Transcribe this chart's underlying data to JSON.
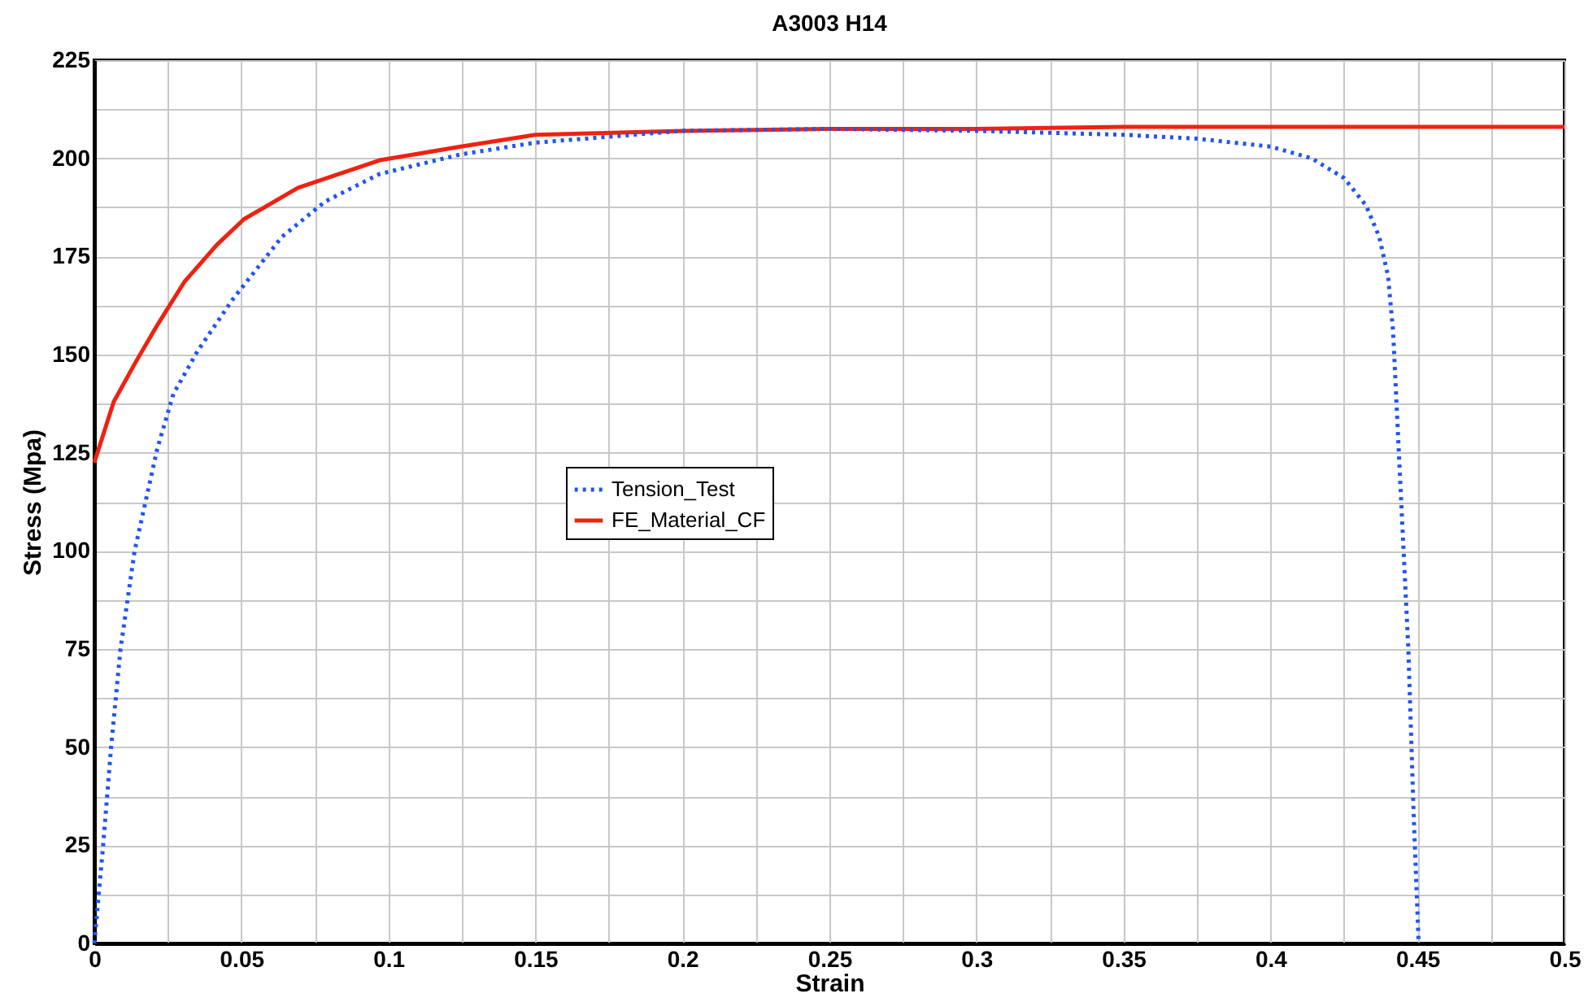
{
  "chart_data": {
    "type": "line",
    "title": "A3003 H14",
    "xlabel": "Strain",
    "ylabel": "Stress (Mpa)",
    "xlim": [
      0,
      0.5
    ],
    "ylim": [
      0,
      225
    ],
    "xticks": [
      0,
      {
        "value": 0.025,
        "label": null
      },
      0.05,
      {
        "value": 0.075,
        "label": null
      },
      0.1,
      {
        "value": 0.125,
        "label": null
      },
      0.15,
      {
        "value": 0.175,
        "label": null
      },
      0.2,
      {
        "value": 0.225,
        "label": null
      },
      0.25,
      {
        "value": 0.275,
        "label": null
      },
      0.3,
      {
        "value": 0.325,
        "label": null
      },
      0.35,
      {
        "value": 0.375,
        "label": null
      },
      0.4,
      {
        "value": 0.425,
        "label": null
      },
      0.45,
      {
        "value": 0.475,
        "label": null
      },
      0.5
    ],
    "yticks": [
      0,
      {
        "value": 12.5,
        "label": null
      },
      25,
      {
        "value": 37.5,
        "label": null
      },
      50,
      {
        "value": 62.5,
        "label": null
      },
      75,
      {
        "value": 87.5,
        "label": null
      },
      100,
      {
        "value": 112.5,
        "label": null
      },
      125,
      {
        "value": 137.5,
        "label": null
      },
      150,
      {
        "value": 162.5,
        "label": null
      },
      175,
      {
        "value": 187.5,
        "label": null
      },
      200,
      {
        "value": 212.5,
        "label": null
      },
      225
    ],
    "grid": true,
    "legend": "left",
    "marker": "none",
    "series": [
      {
        "name": "Tension_Test",
        "color": "#2255ee",
        "line_style": "dotted",
        "x": [
          0,
          0.003,
          0.0057,
          0.0089,
          0.0137,
          0.0149,
          0.0214,
          0.0269,
          0.0352,
          0.047,
          0.0638,
          0.0785,
          0.097,
          0.1246,
          0.15,
          0.2,
          0.25,
          0.3,
          0.35,
          0.375,
          0.4,
          0.414,
          0.425,
          0.4325,
          0.437,
          0.44,
          0.4417,
          0.4445,
          0.4469,
          0.4487,
          0.4504
        ],
        "values": [
          0,
          25,
          50,
          75,
          100,
          104,
          126,
          140,
          151,
          164,
          180,
          189,
          196,
          201,
          204,
          207,
          207.5,
          207,
          206,
          205,
          203,
          200,
          195,
          188,
          180,
          170,
          156,
          112,
          75,
          33,
          0
        ]
      },
      {
        "name": "FE_Material_CF",
        "color": "#ee2211",
        "line_style": "solid",
        "x": [
          0,
          0.0066,
          0.014,
          0.0214,
          0.0306,
          0.0417,
          0.0509,
          0.0693,
          0.097,
          0.1246,
          0.15,
          0.2,
          0.25,
          0.3,
          0.35,
          0.4,
          0.45,
          0.5
        ],
        "values": [
          122.5,
          138,
          148,
          157.5,
          168.5,
          178,
          184.5,
          192.5,
          199.5,
          203,
          206,
          207,
          207.5,
          207.5,
          208,
          208,
          208,
          208
        ]
      }
    ]
  }
}
